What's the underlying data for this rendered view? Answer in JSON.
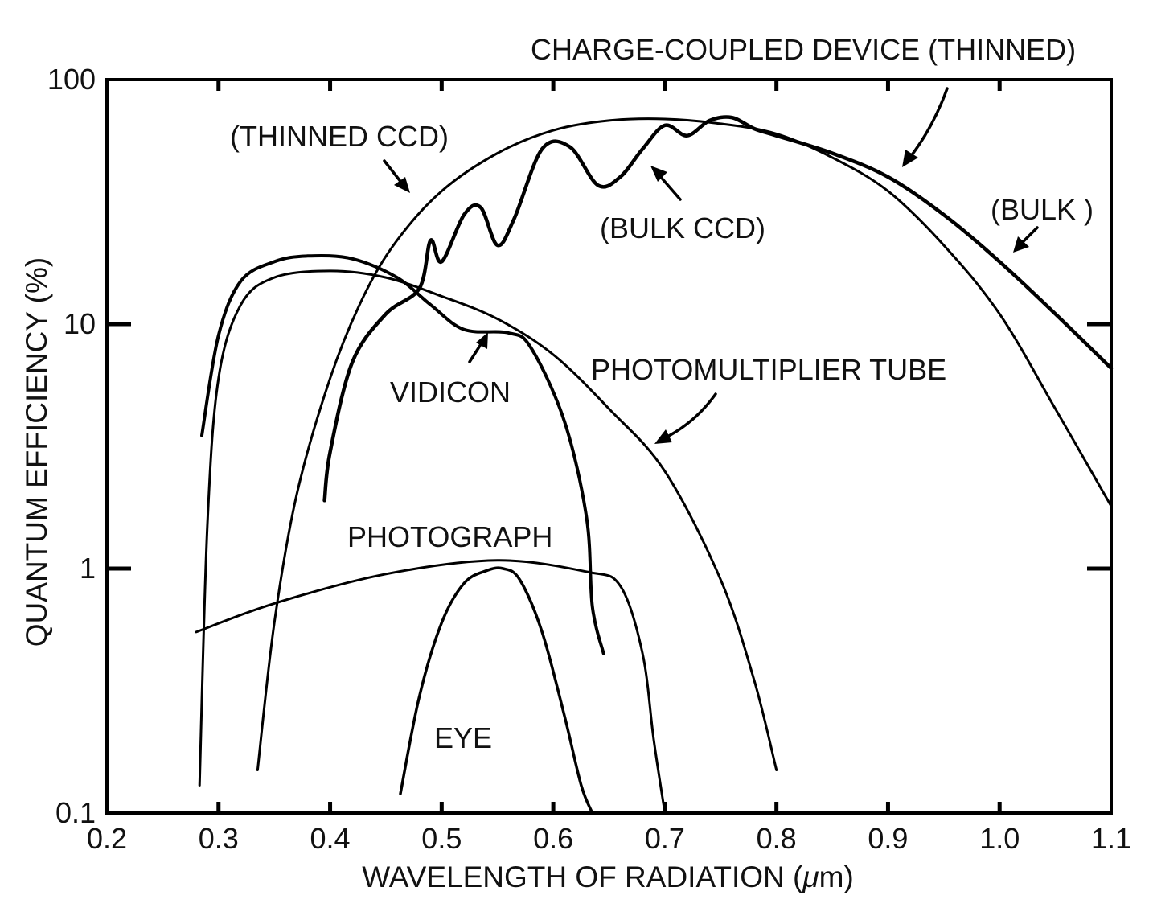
{
  "chart_data": {
    "type": "line",
    "xlabel_prefix": "WAVELENGTH OF RADIATION (",
    "xlabel_unit": "μ",
    "xlabel_suffix": "m)",
    "ylabel": "QUANTUM EFFICIENCY (%)",
    "x_scale": "linear",
    "y_scale": "log",
    "xlim": [
      0.2,
      1.1
    ],
    "ylim": [
      0.1,
      100
    ],
    "x_ticks": [
      "0.2",
      "0.3",
      "0.4",
      "0.5",
      "0.6",
      "0.7",
      "0.8",
      "0.9",
      "1.0",
      "1.1"
    ],
    "y_ticks": [
      "0.1",
      "1",
      "10",
      "100"
    ],
    "grid": false,
    "legend": "none",
    "series": [
      {
        "name": "CHARGE-COUPLED DEVICE (THINNED)",
        "x": [
          0.335,
          0.35,
          0.37,
          0.4,
          0.43,
          0.46,
          0.5,
          0.55,
          0.6,
          0.65,
          0.7,
          0.75,
          0.8,
          0.85,
          0.9,
          0.95,
          1.0,
          1.05,
          1.1
        ],
        "y": [
          0.15,
          0.6,
          2.0,
          6.0,
          13,
          22,
          35,
          50,
          62,
          68,
          69,
          66,
          60,
          48,
          35,
          21,
          11,
          4.5,
          1.8
        ]
      },
      {
        "name": "(BULK CCD)",
        "x": [
          0.395,
          0.4,
          0.42,
          0.45,
          0.48,
          0.49,
          0.5,
          0.52,
          0.535,
          0.55,
          0.565,
          0.59,
          0.615,
          0.64,
          0.66,
          0.68,
          0.7,
          0.72,
          0.74,
          0.76,
          0.78,
          0.8,
          0.85,
          0.9,
          0.95,
          1.0,
          1.05,
          1.1
        ],
        "y": [
          1.9,
          3.0,
          7.0,
          11,
          14,
          22,
          18,
          28,
          30,
          21,
          27,
          52,
          53,
          37,
          40,
          52,
          65,
          59,
          68,
          70,
          63,
          59,
          50,
          40,
          28,
          18,
          11,
          6.6
        ]
      },
      {
        "name": "VIDICON",
        "x": [
          0.285,
          0.3,
          0.32,
          0.35,
          0.38,
          0.42,
          0.46,
          0.49,
          0.52,
          0.56,
          0.58,
          0.61,
          0.63,
          0.635,
          0.645
        ],
        "y": [
          3.5,
          9.0,
          15,
          18,
          19,
          18.5,
          15.5,
          12,
          9.5,
          9.2,
          8.0,
          4.0,
          1.6,
          0.7,
          0.45
        ]
      },
      {
        "name": "PHOTOMULTIPLIER TUBE",
        "x": [
          0.283,
          0.29,
          0.3,
          0.32,
          0.35,
          0.4,
          0.45,
          0.5,
          0.55,
          0.6,
          0.65,
          0.7,
          0.75,
          0.78,
          0.8
        ],
        "y": [
          0.13,
          1.5,
          6.0,
          12,
          15.5,
          16.5,
          15.5,
          13,
          10.5,
          7.5,
          4.5,
          2.5,
          0.9,
          0.35,
          0.15
        ]
      },
      {
        "name": "PHOTOGRAPH",
        "x": [
          0.28,
          0.35,
          0.45,
          0.55,
          0.63,
          0.66,
          0.68,
          0.69,
          0.7
        ],
        "y": [
          0.55,
          0.72,
          0.95,
          1.08,
          0.97,
          0.85,
          0.45,
          0.2,
          0.1
        ]
      },
      {
        "name": "EYE",
        "x": [
          0.463,
          0.48,
          0.5,
          0.52,
          0.54,
          0.555,
          0.57,
          0.59,
          0.61,
          0.625,
          0.635
        ],
        "y": [
          0.12,
          0.3,
          0.6,
          0.87,
          0.98,
          1.0,
          0.9,
          0.55,
          0.25,
          0.13,
          0.1
        ]
      }
    ],
    "annotations": [
      "CHARGE-COUPLED DEVICE (THINNED)",
      "(THINNED CCD)",
      "(BULK CCD)",
      "(BULK )",
      "VIDICON",
      "PHOTOMULTIPLIER TUBE",
      "PHOTOGRAPH",
      "EYE"
    ]
  }
}
